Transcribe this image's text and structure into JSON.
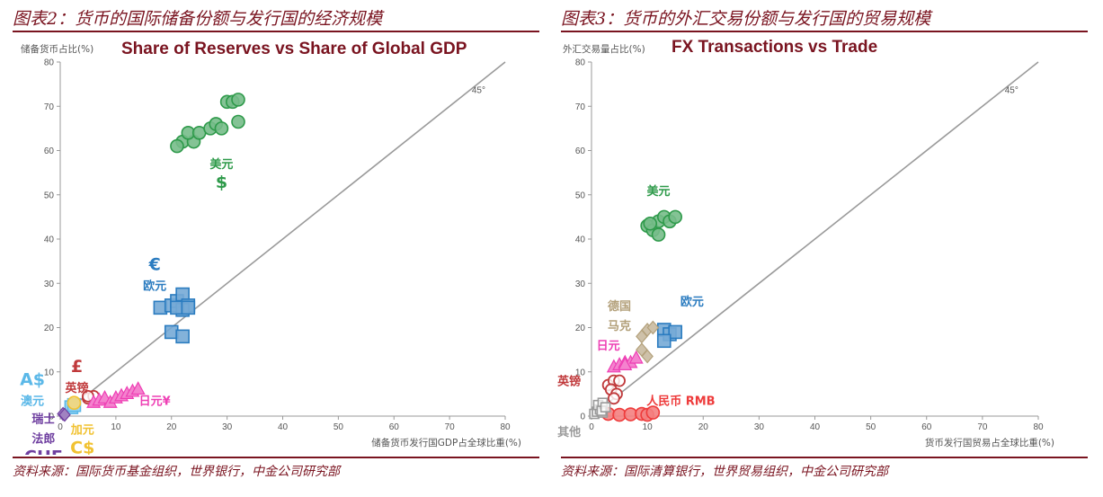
{
  "left": {
    "figure_title": "图表2：货币的国际储备份额与发行国的经济规模",
    "source": "资料来源：国际货币基金组织，世界银行，中金公司研究部"
  },
  "right": {
    "figure_title": "图表3：货币的外汇交易份额与发行国的贸易规模",
    "source": "资料来源：国际清算银行，世界贸易组织，中金公司研究部"
  },
  "colors": {
    "usd": "#2e9a4a",
    "eur": "#2b7cc0",
    "gbp": "#c0393b",
    "jpy": "#ee3fb4",
    "aud": "#5bb8e8",
    "cad": "#f1c232",
    "chf": "#6f3fa0",
    "dem": "#b3a07a",
    "cny": "#ee3b3b",
    "other": "#9a9a9a",
    "dark": "#7a1420"
  },
  "chart_data": [
    {
      "type": "scatter",
      "title": "Share of Reserves vs Share of Global GDP",
      "xlabel": "储备货币发行国GDP占全球比重(%)",
      "ylabel": "储备货币占比(%)",
      "xlim": [
        0,
        80
      ],
      "ylim": [
        0,
        80
      ],
      "xticks": [
        0,
        10,
        20,
        30,
        40,
        50,
        60,
        70,
        80
      ],
      "yticks": [
        0,
        10,
        20,
        30,
        40,
        50,
        60,
        70,
        80
      ],
      "reference_line_label": "45°",
      "series": [
        {
          "key": "usd",
          "shape": "circle",
          "points": [
            [
              22,
              62
            ],
            [
              24,
              62
            ],
            [
              23,
              64
            ],
            [
              25,
              64
            ],
            [
              27,
              65
            ],
            [
              28,
              66
            ],
            [
              29,
              65
            ],
            [
              30,
              71
            ],
            [
              31,
              71
            ],
            [
              32,
              71.5
            ],
            [
              32,
              66.5
            ],
            [
              21,
              61
            ]
          ]
        },
        {
          "key": "eur",
          "shape": "square",
          "points": [
            [
              18,
              24.5
            ],
            [
              20,
              25
            ],
            [
              21,
              26
            ],
            [
              22,
              27.5
            ],
            [
              23,
              25
            ],
            [
              22,
              24
            ],
            [
              21,
              24.5
            ],
            [
              23,
              24.5
            ],
            [
              20,
              19
            ],
            [
              22,
              18
            ]
          ]
        },
        {
          "key": "gbp",
          "shape": "circle-open",
          "points": [
            [
              5,
              4
            ],
            [
              6,
              4.5
            ],
            [
              5,
              4.5
            ]
          ]
        },
        {
          "key": "jpy",
          "shape": "triangle",
          "points": [
            [
              6,
              3
            ],
            [
              7,
              3.5
            ],
            [
              8,
              4
            ],
            [
              9,
              3
            ],
            [
              10,
              4
            ],
            [
              11,
              4.5
            ],
            [
              12,
              5
            ],
            [
              13,
              5.5
            ],
            [
              14,
              6
            ]
          ]
        },
        {
          "key": "aud",
          "shape": "square",
          "points": [
            [
              2,
              2
            ],
            [
              2.5,
              2.5
            ]
          ]
        },
        {
          "key": "cad",
          "shape": "circle",
          "points": [
            [
              2.5,
              3
            ]
          ]
        },
        {
          "key": "chf",
          "shape": "diamond",
          "points": [
            [
              0.5,
              0.5
            ],
            [
              0.8,
              0.3
            ]
          ]
        }
      ],
      "annotations": [
        {
          "key": "usd",
          "lines": [
            "美元",
            "$"
          ],
          "x": 29,
          "y": 56
        },
        {
          "key": "eur",
          "lines": [
            "€",
            "欧元"
          ],
          "x": 17,
          "y": 33
        },
        {
          "key": "gbp",
          "lines": [
            "£",
            "英镑"
          ],
          "x": 3,
          "y": 10
        },
        {
          "key": "jpy",
          "lines": [
            "日元¥"
          ],
          "x": 17,
          "y": 2.5
        },
        {
          "key": "aud",
          "lines": [
            "A$",
            "澳元"
          ],
          "x": -5,
          "y": 7
        },
        {
          "key": "cad",
          "lines": [
            "加元",
            "C$"
          ],
          "x": 4,
          "y": -4
        },
        {
          "key": "chf",
          "lines": [
            "瑞士",
            "法郎",
            "CHF"
          ],
          "x": -3,
          "y": -1.5
        }
      ]
    },
    {
      "type": "scatter",
      "title": "FX Transactions vs Trade",
      "xlabel": "货币发行国贸易占全球比重(%)",
      "ylabel": "外汇交易量占比(%)",
      "xlim": [
        0,
        80
      ],
      "ylim": [
        0,
        80
      ],
      "xticks": [
        0,
        10,
        20,
        30,
        40,
        50,
        60,
        70,
        80
      ],
      "yticks": [
        0,
        10,
        20,
        30,
        40,
        50,
        60,
        70,
        80
      ],
      "reference_line_label": "45°",
      "series": [
        {
          "key": "usd",
          "shape": "circle",
          "points": [
            [
              10,
              43
            ],
            [
              11,
              42
            ],
            [
              12,
              44
            ],
            [
              13,
              45
            ],
            [
              14,
              44
            ],
            [
              15,
              45
            ],
            [
              12,
              41
            ],
            [
              10.5,
              43.5
            ]
          ]
        },
        {
          "key": "eur",
          "shape": "square",
          "points": [
            [
              13,
              19.5
            ],
            [
              14,
              18.5
            ],
            [
              15,
              19
            ],
            [
              13,
              17
            ]
          ]
        },
        {
          "key": "dem",
          "shape": "diamond",
          "points": [
            [
              9,
              18
            ],
            [
              10,
              19.5
            ],
            [
              11,
              20
            ],
            [
              9,
              15
            ],
            [
              10,
              13.5
            ]
          ]
        },
        {
          "key": "jpy",
          "shape": "triangle",
          "points": [
            [
              4,
              11
            ],
            [
              5,
              11.5
            ],
            [
              6,
              12
            ],
            [
              7,
              12
            ],
            [
              8,
              13
            ],
            [
              6,
              11.5
            ]
          ]
        },
        {
          "key": "gbp",
          "shape": "circle-open",
          "points": [
            [
              3,
              7
            ],
            [
              4,
              8
            ],
            [
              5,
              8
            ],
            [
              3.5,
              6
            ],
            [
              4.5,
              5
            ],
            [
              4,
              4
            ]
          ]
        },
        {
          "key": "cny",
          "shape": "circle",
          "points": [
            [
              3,
              0.5
            ],
            [
              5,
              0.3
            ],
            [
              7,
              0.4
            ],
            [
              9,
              0.5
            ],
            [
              10,
              0.3
            ],
            [
              11,
              0.8
            ]
          ]
        },
        {
          "key": "other",
          "shape": "square-open",
          "points": [
            [
              0.5,
              0.5
            ],
            [
              1,
              1
            ],
            [
              1.5,
              1.5
            ],
            [
              1.2,
              2.5
            ],
            [
              2,
              3
            ],
            [
              2,
              0.8
            ],
            [
              1.8,
              1.2
            ],
            [
              2.5,
              2
            ]
          ]
        }
      ],
      "annotations": [
        {
          "key": "usd",
          "lines": [
            "美元"
          ],
          "x": 12,
          "y": 50
        },
        {
          "key": "eur",
          "lines": [
            "欧元"
          ],
          "x": 18,
          "y": 25
        },
        {
          "key": "dem",
          "lines": [
            "德国",
            "马克"
          ],
          "x": 5,
          "y": 24
        },
        {
          "key": "jpy",
          "lines": [
            "日元"
          ],
          "x": 3,
          "y": 15
        },
        {
          "key": "gbp",
          "lines": [
            "英镑"
          ],
          "x": -4,
          "y": 7
        },
        {
          "key": "cny",
          "lines": [
            "人民币 RMB"
          ],
          "x": 16,
          "y": 2.5
        },
        {
          "key": "other",
          "lines": [
            "其他"
          ],
          "x": -4,
          "y": -4.5
        }
      ]
    }
  ]
}
